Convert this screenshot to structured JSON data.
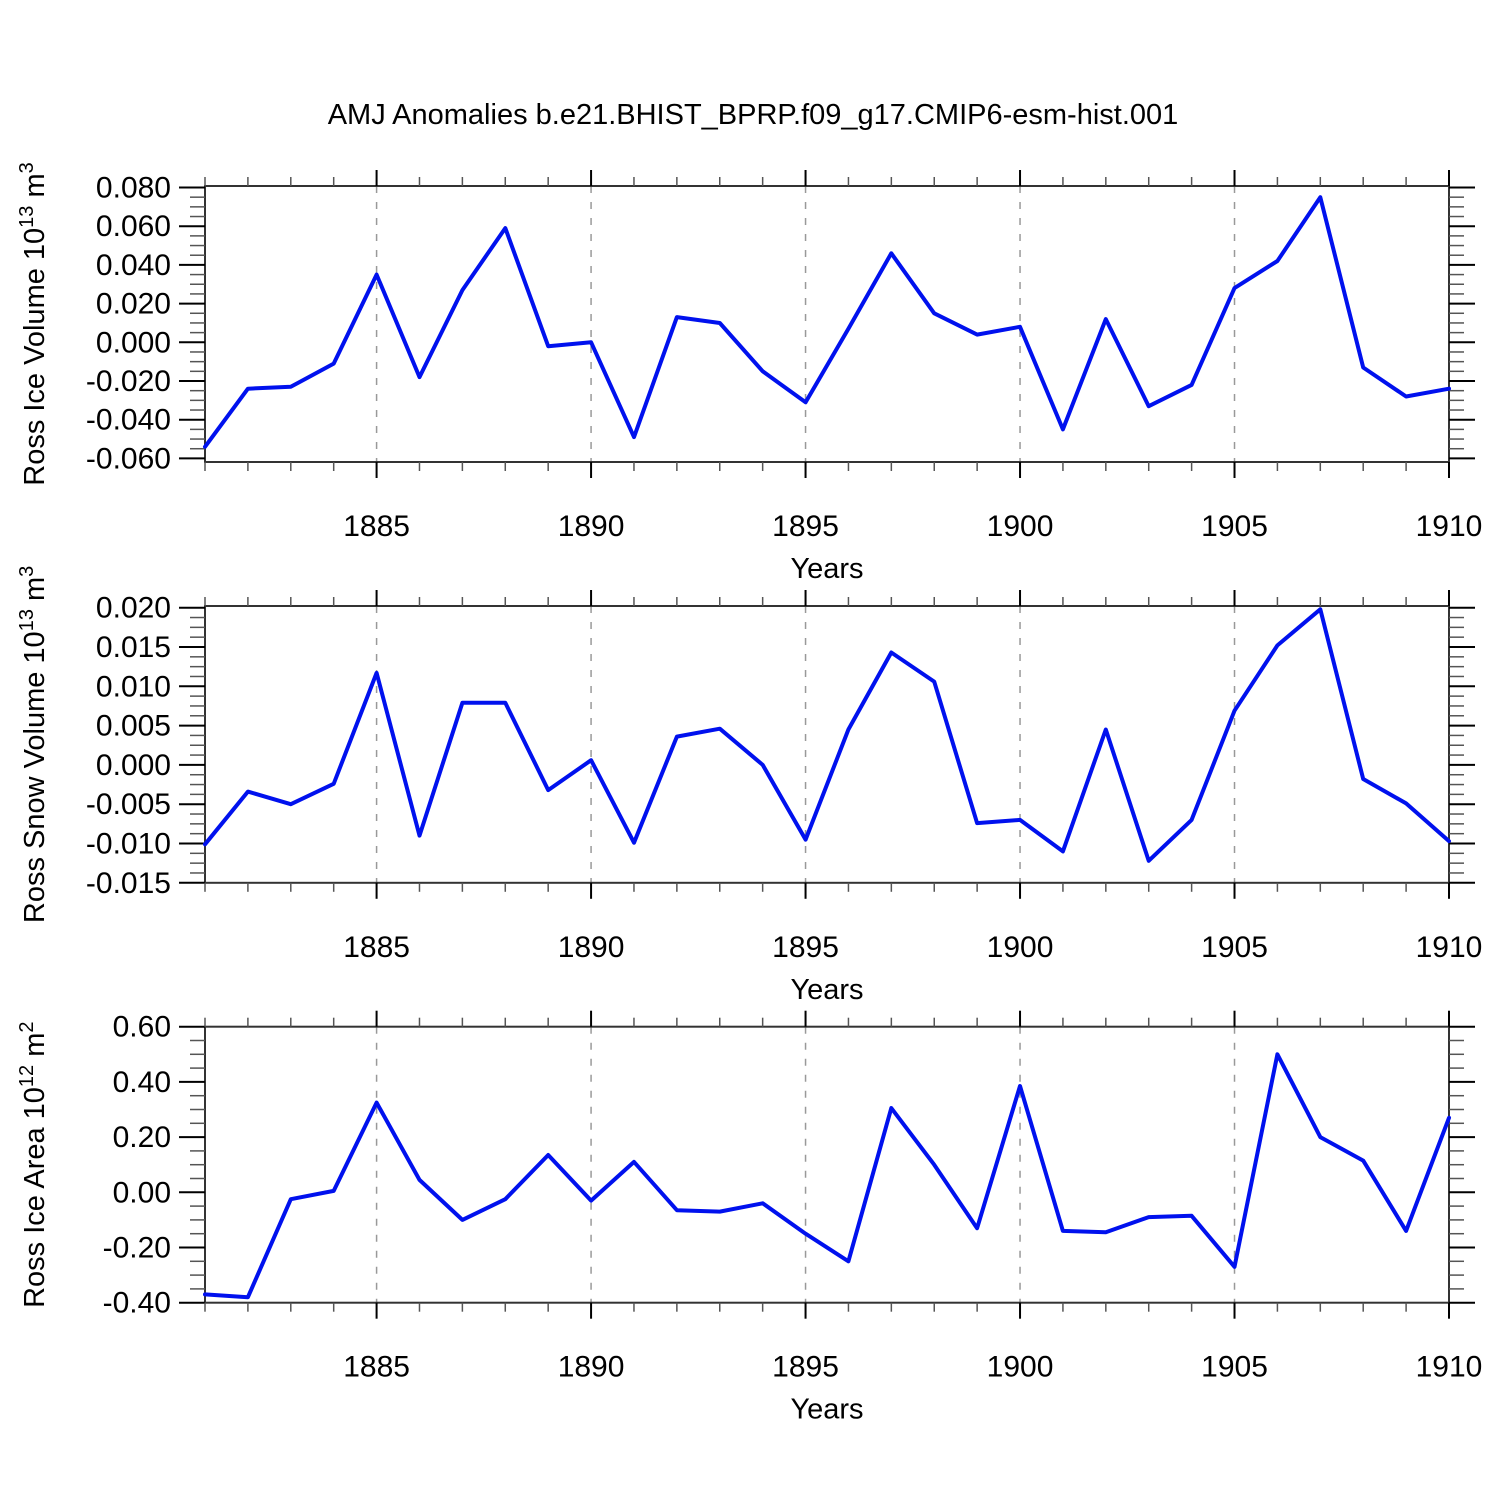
{
  "title": "AMJ Anomalies b.e21.BHIST_BPRP.f09_g17.CMIP6-esm-hist.001",
  "xlabel": "Years",
  "line_color": "#0011ee",
  "grid_color": "#999999",
  "axis_color": "#333333",
  "minor_tick_color": "#555555",
  "x_major_tick_labels": [
    "1885",
    "1890",
    "1895",
    "1900",
    "1905",
    "1910"
  ],
  "years": [
    1881,
    1882,
    1883,
    1884,
    1885,
    1886,
    1887,
    1888,
    1889,
    1890,
    1891,
    1892,
    1893,
    1894,
    1895,
    1896,
    1897,
    1898,
    1899,
    1900,
    1901,
    1902,
    1903,
    1904,
    1905,
    1906,
    1907,
    1908,
    1909,
    1910
  ],
  "chart_data": [
    {
      "type": "line",
      "id": "ice-volume",
      "ylabel": "Ross Ice Volume 10^13 m^3",
      "ylabel_parts": {
        "base": "Ross Ice Volume 10",
        "exp": "13",
        "unit": " m",
        "unit_exp": "3"
      },
      "xlabel": "Years",
      "x": [
        1881,
        1882,
        1883,
        1884,
        1885,
        1886,
        1887,
        1888,
        1889,
        1890,
        1891,
        1892,
        1893,
        1894,
        1895,
        1896,
        1897,
        1898,
        1899,
        1900,
        1901,
        1902,
        1903,
        1904,
        1905,
        1906,
        1907,
        1908,
        1909,
        1910
      ],
      "values": [
        -0.054,
        -0.024,
        -0.023,
        -0.011,
        0.035,
        -0.018,
        0.027,
        0.059,
        -0.002,
        0.0,
        -0.049,
        0.013,
        0.01,
        -0.015,
        -0.031,
        0.007,
        0.046,
        0.015,
        0.004,
        0.008,
        -0.045,
        0.012,
        -0.033,
        -0.022,
        0.028,
        0.042,
        0.075,
        -0.013,
        -0.028,
        -0.024
      ],
      "ylim": [
        -0.062,
        0.0805
      ],
      "xlim": [
        1881,
        1910
      ],
      "y_tick_values": [
        0.08,
        0.06,
        0.04,
        0.02,
        0.0,
        -0.02,
        -0.04,
        -0.06
      ],
      "y_tick_labels": [
        "0.080",
        "0.060",
        "0.040",
        "0.020",
        "0.000",
        "-0.020",
        "-0.040",
        "-0.060"
      ],
      "y_minor_step": 0.005,
      "grid_x": [
        1885,
        1890,
        1895,
        1900,
        1905
      ],
      "grid": "vertical-dashed",
      "legend": "none"
    },
    {
      "type": "line",
      "id": "snow-volume",
      "ylabel": "Ross Snow Volume 10^13 m^3",
      "ylabel_parts": {
        "base": "Ross Snow Volume 10",
        "exp": "13",
        "unit": " m",
        "unit_exp": "3"
      },
      "xlabel": "Years",
      "x": [
        1881,
        1882,
        1883,
        1884,
        1885,
        1886,
        1887,
        1888,
        1889,
        1890,
        1891,
        1892,
        1893,
        1894,
        1895,
        1896,
        1897,
        1898,
        1899,
        1900,
        1901,
        1902,
        1903,
        1904,
        1905,
        1906,
        1907,
        1908,
        1909,
        1910
      ],
      "values": [
        -0.0101,
        -0.0034,
        -0.005,
        -0.0024,
        0.0117,
        -0.009,
        0.0079,
        0.0079,
        -0.0032,
        0.0006,
        -0.0099,
        0.0036,
        0.0046,
        0.0,
        -0.0095,
        0.0045,
        0.0143,
        0.0106,
        -0.0074,
        -0.007,
        -0.011,
        0.0045,
        -0.0122,
        -0.007,
        0.0069,
        0.0152,
        0.0198,
        -0.0018,
        -0.0049,
        -0.0097
      ],
      "ylim": [
        -0.01505,
        0.0202
      ],
      "xlim": [
        1881,
        1910
      ],
      "y_tick_values": [
        0.02,
        0.015,
        0.01,
        0.005,
        0.0,
        -0.005,
        -0.01,
        -0.015
      ],
      "y_tick_labels": [
        "0.020",
        "0.015",
        "0.010",
        "0.005",
        "0.000",
        "-0.005",
        "-0.010",
        "-0.015"
      ],
      "y_minor_step": 0.00125,
      "grid_x": [
        1885,
        1890,
        1895,
        1900,
        1905
      ],
      "grid": "vertical-dashed",
      "legend": "none"
    },
    {
      "type": "line",
      "id": "ice-area",
      "ylabel": "Ross Ice Area 10^12 m^2",
      "ylabel_parts": {
        "base": "Ross Ice Area 10",
        "exp": "12",
        "unit": " m",
        "unit_exp": "2"
      },
      "xlabel": "Years",
      "x": [
        1881,
        1882,
        1883,
        1884,
        1885,
        1886,
        1887,
        1888,
        1889,
        1890,
        1891,
        1892,
        1893,
        1894,
        1895,
        1896,
        1897,
        1898,
        1899,
        1900,
        1901,
        1902,
        1903,
        1904,
        1905,
        1906,
        1907,
        1908,
        1909,
        1910
      ],
      "values": [
        -0.37,
        -0.38,
        -0.025,
        0.005,
        0.325,
        0.045,
        -0.1,
        -0.025,
        0.135,
        -0.03,
        0.11,
        -0.065,
        -0.07,
        -0.04,
        -0.15,
        -0.25,
        0.305,
        0.1,
        -0.13,
        0.385,
        -0.14,
        -0.145,
        -0.09,
        -0.085,
        -0.27,
        0.5,
        0.2,
        0.115,
        -0.14,
        0.27
      ],
      "ylim": [
        -0.4,
        0.6
      ],
      "xlim": [
        1881,
        1910
      ],
      "y_tick_values": [
        0.6,
        0.4,
        0.2,
        0.0,
        -0.2,
        -0.4
      ],
      "y_tick_labels": [
        "0.60",
        "0.40",
        "0.20",
        "0.00",
        "-0.20",
        "-0.40"
      ],
      "y_minor_step": 0.05,
      "grid_x": [
        1885,
        1890,
        1895,
        1900,
        1905
      ],
      "grid": "vertical-dashed",
      "legend": "none"
    }
  ]
}
